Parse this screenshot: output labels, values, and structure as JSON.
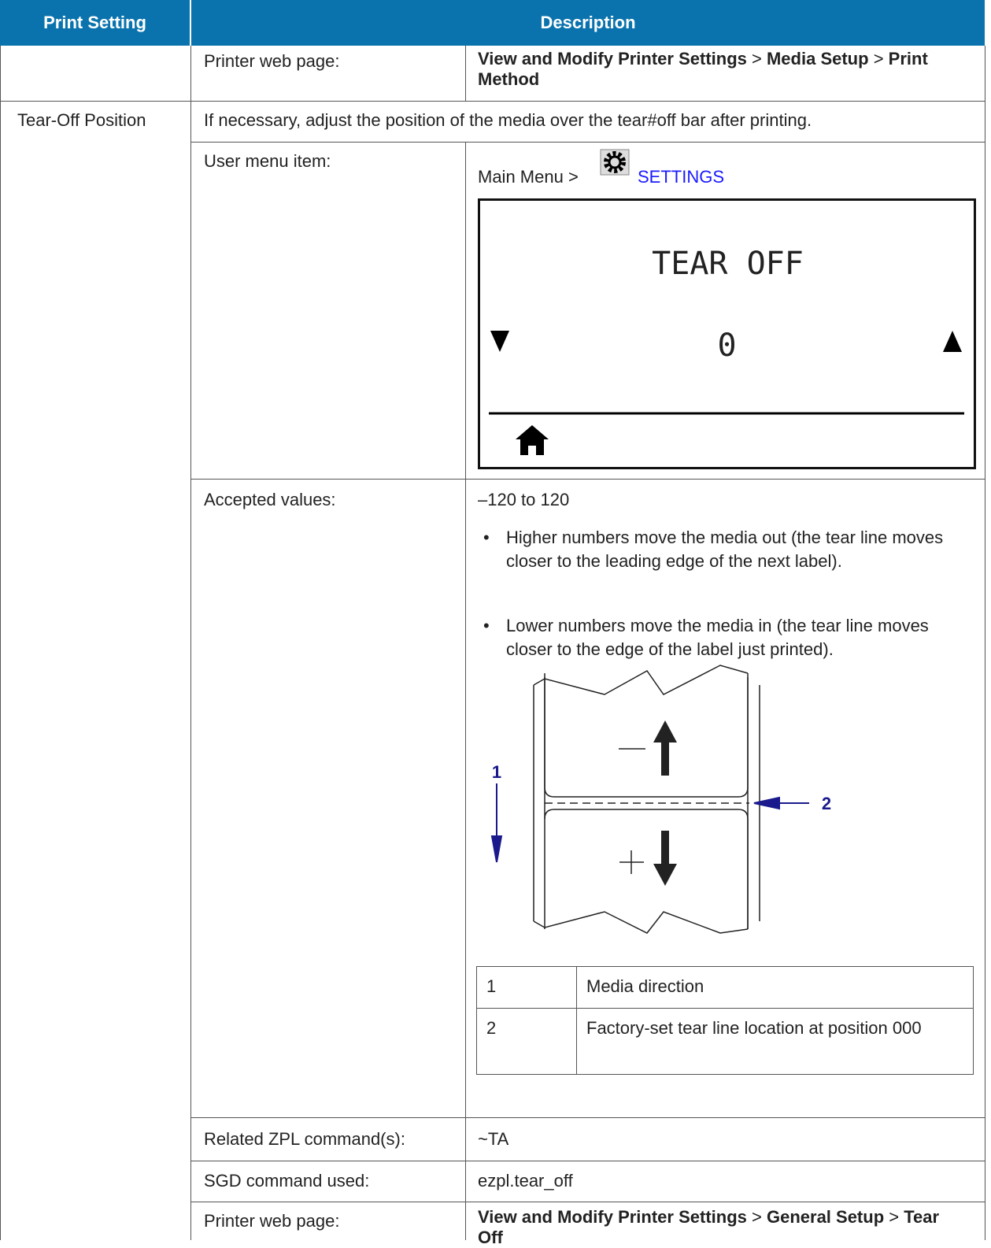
{
  "table": {
    "headers": [
      "Print Setting",
      "Description"
    ],
    "separator": ">",
    "rows": [
      {
        "label": "Printer web page:",
        "web_path": [
          "View and Modify Printer Settings",
          "Media Setup",
          "Print Method"
        ]
      },
      {
        "setting": "Tear-Off Position",
        "description": "If necessary, adjust the position of the media over the tear#off bar after printing."
      },
      {
        "label": "User menu item:",
        "menu_path": "Main Menu >",
        "menu_target": "SETTINGS",
        "display": {
          "title": "TEAR OFF",
          "value": "0"
        }
      },
      {
        "label": "Accepted values:",
        "range": "–120 to 120",
        "bullets": [
          "Higher numbers move the media out (the tear line moves closer to the leading edge of the next label).",
          "Lower numbers move the media in (the tear line moves closer to the edge of the label just printed)."
        ],
        "callouts": [
          "1",
          "2"
        ],
        "legend": [
          [
            "1",
            "Media direction"
          ],
          [
            "2",
            "Factory-set tear line location at position 000"
          ]
        ]
      },
      {
        "label": "Related ZPL command(s):",
        "value": "~TA"
      },
      {
        "label": "SGD command used:",
        "value": "ezpl.tear_off"
      },
      {
        "label": "Printer web page:",
        "web_path": [
          "View and Modify Printer Settings",
          "General Setup",
          "Tear Off"
        ]
      }
    ]
  }
}
